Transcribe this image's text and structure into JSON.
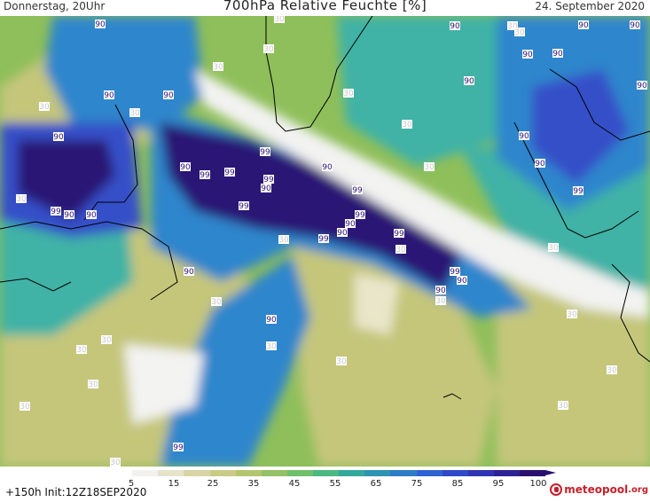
{
  "header": {
    "left": "Donnerstag, 20Uhr",
    "title": "700hPa Relative Feuchte [%]",
    "right": "24. September 2020"
  },
  "footer": {
    "init": "+150h  Init:12Z18SEP2020",
    "logo_main": "meteopool",
    "logo_suffix": ".org"
  },
  "colorbar": {
    "ticks": [
      "5",
      "15",
      "25",
      "35",
      "45",
      "55",
      "65",
      "75",
      "85",
      "95",
      "100"
    ],
    "colors": [
      "#ffffff",
      "#f1f1ee",
      "#e6e3cb",
      "#d8d5a6",
      "#c9cc86",
      "#b3c56f",
      "#94c067",
      "#6fc06a",
      "#4db882",
      "#35a89c",
      "#2f93b4",
      "#2f7cc8",
      "#2f63d2",
      "#2f49c8",
      "#2f34b2",
      "#2c2294",
      "#2a106e"
    ]
  },
  "colors": {
    "high": "#2a1275",
    "mid_high": "#3550c8",
    "mid": "#2f86cc",
    "teal": "#3fb2a6",
    "green": "#8fbf5a",
    "olive": "#c5c67a",
    "dry": "#e9e6c9",
    "very_dry": "#f3f3f2",
    "coast": "#000000",
    "label_high": "#2a1275",
    "label_low": "#c8c8c8"
  },
  "contour_labels": [
    {
      "text": "90",
      "kind": "high"
    },
    {
      "text": "90",
      "kind": "high"
    },
    {
      "text": "90",
      "kind": "high"
    },
    {
      "text": "90",
      "kind": "high"
    },
    {
      "text": "90",
      "kind": "high"
    },
    {
      "text": "90",
      "kind": "high"
    },
    {
      "text": "90",
      "kind": "high"
    },
    {
      "text": "90",
      "kind": "high"
    },
    {
      "text": "90",
      "kind": "high"
    },
    {
      "text": "90",
      "kind": "high"
    },
    {
      "text": "90",
      "kind": "high"
    },
    {
      "text": "90",
      "kind": "high"
    },
    {
      "text": "90",
      "kind": "high"
    },
    {
      "text": "90",
      "kind": "high"
    },
    {
      "text": "90",
      "kind": "high"
    },
    {
      "text": "90",
      "kind": "high"
    },
    {
      "text": "90",
      "kind": "high"
    },
    {
      "text": "90",
      "kind": "high"
    },
    {
      "text": "90",
      "kind": "high"
    },
    {
      "text": "90",
      "kind": "high"
    },
    {
      "text": "90",
      "kind": "high"
    },
    {
      "text": "90",
      "kind": "high"
    },
    {
      "text": "90",
      "kind": "high"
    },
    {
      "text": "90",
      "kind": "high"
    },
    {
      "text": "99",
      "kind": "high"
    },
    {
      "text": "99",
      "kind": "high"
    },
    {
      "text": "99",
      "kind": "high"
    },
    {
      "text": "99",
      "kind": "high"
    },
    {
      "text": "99",
      "kind": "high"
    },
    {
      "text": "99",
      "kind": "high"
    },
    {
      "text": "99",
      "kind": "high"
    },
    {
      "text": "99",
      "kind": "high"
    },
    {
      "text": "99",
      "kind": "high"
    },
    {
      "text": "99",
      "kind": "high"
    },
    {
      "text": "99",
      "kind": "high"
    },
    {
      "text": "99",
      "kind": "high"
    },
    {
      "text": "99",
      "kind": "high"
    },
    {
      "text": "30",
      "kind": "low"
    },
    {
      "text": "30",
      "kind": "low"
    },
    {
      "text": "30",
      "kind": "low"
    },
    {
      "text": "30",
      "kind": "low"
    },
    {
      "text": "30",
      "kind": "low"
    },
    {
      "text": "30",
      "kind": "low"
    },
    {
      "text": "30",
      "kind": "low"
    },
    {
      "text": "30",
      "kind": "low"
    },
    {
      "text": "30",
      "kind": "low"
    },
    {
      "text": "30",
      "kind": "low"
    },
    {
      "text": "30",
      "kind": "low"
    },
    {
      "text": "30",
      "kind": "low"
    },
    {
      "text": "30",
      "kind": "low"
    },
    {
      "text": "30",
      "kind": "low"
    },
    {
      "text": "30",
      "kind": "low"
    },
    {
      "text": "30",
      "kind": "low"
    },
    {
      "text": "30",
      "kind": "low"
    },
    {
      "text": "30",
      "kind": "low"
    },
    {
      "text": "30",
      "kind": "low"
    },
    {
      "text": "30",
      "kind": "low"
    },
    {
      "text": "30",
      "kind": "low"
    },
    {
      "text": "30",
      "kind": "low"
    },
    {
      "text": "30",
      "kind": "low"
    },
    {
      "text": "30",
      "kind": "low"
    },
    {
      "text": "30",
      "kind": "low"
    },
    {
      "text": "30",
      "kind": "low"
    }
  ]
}
